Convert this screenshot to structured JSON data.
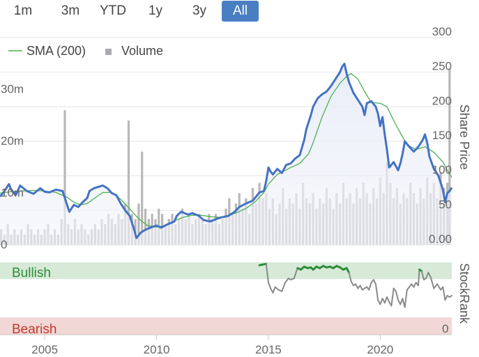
{
  "range_buttons": [
    {
      "label": "1m",
      "active": false
    },
    {
      "label": "3m",
      "active": false
    },
    {
      "label": "YTD",
      "active": false
    },
    {
      "label": "1y",
      "active": false
    },
    {
      "label": "3y",
      "active": false
    },
    {
      "label": "All",
      "active": true
    }
  ],
  "colors": {
    "price": "#4472c4",
    "sma": "#4caf50",
    "volume": "#b8b8b8",
    "bullish_bg": "#d6ead7",
    "bearish_bg": "#f2d7d7",
    "rank_bull": "#2e8b3a",
    "rank_gray": "#8a8a8a",
    "accent": "#4a7ec2"
  },
  "chart_data": {
    "type": "line",
    "legend": [
      {
        "name": "SMA (200)",
        "icon": "line"
      },
      {
        "name": "Volume",
        "icon": "square"
      }
    ],
    "price_axis": {
      "title": "Share Price",
      "ticks": [
        "300",
        "250",
        "200",
        "150",
        "100",
        "50",
        "0.00"
      ],
      "range": [
        0,
        300
      ]
    },
    "volume_axis": {
      "ticks": [
        "30m",
        "20m",
        "10m",
        "0"
      ],
      "range": [
        0,
        40
      ]
    },
    "stockrank_axis": {
      "title": "StockRank",
      "zero_label": "0",
      "range": [
        0,
        100
      ]
    },
    "zones": {
      "top": "Bullish",
      "bottom": "Bearish"
    },
    "x_axis": {
      "ticks": [
        "2005",
        "2010",
        "2015",
        "2020"
      ],
      "range": [
        2003.0,
        2023.2
      ]
    },
    "price_series": [
      [
        2003.0,
        70
      ],
      [
        2003.2,
        78
      ],
      [
        2003.4,
        88
      ],
      [
        2003.5,
        80
      ],
      [
        2003.7,
        72
      ],
      [
        2003.9,
        86
      ],
      [
        2004.2,
        78
      ],
      [
        2004.5,
        74
      ],
      [
        2004.8,
        82
      ],
      [
        2005.0,
        77
      ],
      [
        2005.2,
        76
      ],
      [
        2005.5,
        80
      ],
      [
        2005.8,
        78
      ],
      [
        2005.9,
        68
      ],
      [
        2006.0,
        58
      ],
      [
        2006.1,
        48
      ],
      [
        2006.3,
        58
      ],
      [
        2006.5,
        55
      ],
      [
        2006.7,
        62
      ],
      [
        2006.9,
        68
      ],
      [
        2007.0,
        78
      ],
      [
        2007.2,
        82
      ],
      [
        2007.4,
        84
      ],
      [
        2007.6,
        86
      ],
      [
        2007.8,
        82
      ],
      [
        2008.0,
        75
      ],
      [
        2008.2,
        72
      ],
      [
        2008.4,
        60
      ],
      [
        2008.6,
        50
      ],
      [
        2008.8,
        42
      ],
      [
        2009.0,
        22
      ],
      [
        2009.1,
        10
      ],
      [
        2009.3,
        18
      ],
      [
        2009.5,
        22
      ],
      [
        2009.8,
        26
      ],
      [
        2010.0,
        28
      ],
      [
        2010.2,
        25
      ],
      [
        2010.5,
        30
      ],
      [
        2010.8,
        34
      ],
      [
        2010.9,
        42
      ],
      [
        2011.1,
        48
      ],
      [
        2011.4,
        44
      ],
      [
        2011.6,
        46
      ],
      [
        2011.9,
        42
      ],
      [
        2012.1,
        36
      ],
      [
        2012.4,
        34
      ],
      [
        2012.7,
        38
      ],
      [
        2012.9,
        40
      ],
      [
        2013.2,
        42
      ],
      [
        2013.5,
        48
      ],
      [
        2013.7,
        55
      ],
      [
        2014.0,
        60
      ],
      [
        2014.3,
        64
      ],
      [
        2014.6,
        76
      ],
      [
        2014.8,
        78
      ],
      [
        2014.9,
        92
      ],
      [
        2015.0,
        112
      ],
      [
        2015.1,
        106
      ],
      [
        2015.2,
        102
      ],
      [
        2015.4,
        110
      ],
      [
        2015.6,
        104
      ],
      [
        2015.8,
        116
      ],
      [
        2016.0,
        118
      ],
      [
        2016.2,
        125
      ],
      [
        2016.4,
        130
      ],
      [
        2016.6,
        152
      ],
      [
        2016.7,
        168
      ],
      [
        2016.9,
        188
      ],
      [
        2017.0,
        200
      ],
      [
        2017.2,
        212
      ],
      [
        2017.4,
        218
      ],
      [
        2017.6,
        222
      ],
      [
        2017.8,
        230
      ],
      [
        2018.0,
        240
      ],
      [
        2018.2,
        250
      ],
      [
        2018.3,
        258
      ],
      [
        2018.4,
        262
      ],
      [
        2018.5,
        248
      ],
      [
        2018.6,
        236
      ],
      [
        2018.8,
        220
      ],
      [
        2019.0,
        210
      ],
      [
        2019.2,
        200
      ],
      [
        2019.3,
        188
      ],
      [
        2019.4,
        205
      ],
      [
        2019.6,
        208
      ],
      [
        2019.8,
        200
      ],
      [
        2019.9,
        190
      ],
      [
        2020.0,
        172
      ],
      [
        2020.1,
        185
      ],
      [
        2020.2,
        160
      ],
      [
        2020.3,
        138
      ],
      [
        2020.4,
        112
      ],
      [
        2020.6,
        120
      ],
      [
        2020.8,
        108
      ],
      [
        2020.9,
        118
      ],
      [
        2021.0,
        132
      ],
      [
        2021.1,
        150
      ],
      [
        2021.3,
        142
      ],
      [
        2021.5,
        135
      ],
      [
        2021.7,
        142
      ],
      [
        2021.9,
        152
      ],
      [
        2022.0,
        160
      ],
      [
        2022.1,
        148
      ],
      [
        2022.2,
        128
      ],
      [
        2022.4,
        110
      ],
      [
        2022.6,
        100
      ],
      [
        2022.8,
        80
      ],
      [
        2022.9,
        62
      ],
      [
        2023.0,
        75
      ],
      [
        2023.1,
        78
      ],
      [
        2023.2,
        83
      ]
    ],
    "sma_series": [
      [
        2003.0,
        75
      ],
      [
        2003.5,
        77
      ],
      [
        2004.0,
        78
      ],
      [
        2004.5,
        79
      ],
      [
        2005.0,
        78
      ],
      [
        2005.5,
        76
      ],
      [
        2006.0,
        69
      ],
      [
        2006.3,
        62
      ],
      [
        2006.6,
        58
      ],
      [
        2006.9,
        60
      ],
      [
        2007.2,
        67
      ],
      [
        2007.6,
        76
      ],
      [
        2008.0,
        76
      ],
      [
        2008.4,
        66
      ],
      [
        2008.8,
        52
      ],
      [
        2009.2,
        38
      ],
      [
        2009.6,
        28
      ],
      [
        2010.0,
        26
      ],
      [
        2010.4,
        28
      ],
      [
        2010.8,
        35
      ],
      [
        2011.2,
        40
      ],
      [
        2011.6,
        43
      ],
      [
        2012.0,
        43
      ],
      [
        2012.4,
        41
      ],
      [
        2012.8,
        40
      ],
      [
        2013.2,
        42
      ],
      [
        2013.6,
        47
      ],
      [
        2014.0,
        53
      ],
      [
        2014.4,
        62
      ],
      [
        2014.8,
        76
      ],
      [
        2015.0,
        88
      ],
      [
        2015.4,
        102
      ],
      [
        2016.0,
        112
      ],
      [
        2016.4,
        118
      ],
      [
        2016.8,
        132
      ],
      [
        2017.0,
        148
      ],
      [
        2017.4,
        185
      ],
      [
        2017.8,
        215
      ],
      [
        2018.2,
        234
      ],
      [
        2018.5,
        244
      ],
      [
        2018.7,
        248
      ],
      [
        2019.0,
        240
      ],
      [
        2019.3,
        222
      ],
      [
        2019.6,
        206
      ],
      [
        2020.0,
        205
      ],
      [
        2020.3,
        200
      ],
      [
        2020.6,
        180
      ],
      [
        2020.9,
        162
      ],
      [
        2021.2,
        145
      ],
      [
        2021.6,
        138
      ],
      [
        2022.0,
        142
      ],
      [
        2022.4,
        134
      ],
      [
        2022.8,
        120
      ],
      [
        2023.0,
        108
      ],
      [
        2023.2,
        98
      ]
    ],
    "volume_series": [
      [
        2003.05,
        3
      ],
      [
        2003.2,
        2
      ],
      [
        2003.35,
        4
      ],
      [
        2003.5,
        2
      ],
      [
        2003.65,
        3
      ],
      [
        2003.8,
        2
      ],
      [
        2003.95,
        3
      ],
      [
        2004.1,
        2
      ],
      [
        2004.25,
        4
      ],
      [
        2004.4,
        3
      ],
      [
        2004.55,
        2
      ],
      [
        2004.7,
        3
      ],
      [
        2004.85,
        2
      ],
      [
        2005.0,
        3
      ],
      [
        2005.15,
        4
      ],
      [
        2005.3,
        2
      ],
      [
        2005.45,
        3
      ],
      [
        2005.6,
        2
      ],
      [
        2005.75,
        5
      ],
      [
        2005.9,
        26
      ],
      [
        2006.05,
        4
      ],
      [
        2006.2,
        3
      ],
      [
        2006.35,
        5
      ],
      [
        2006.5,
        3
      ],
      [
        2006.65,
        4
      ],
      [
        2006.8,
        3
      ],
      [
        2006.95,
        2
      ],
      [
        2007.1,
        3
      ],
      [
        2007.25,
        4
      ],
      [
        2007.4,
        3
      ],
      [
        2007.55,
        5
      ],
      [
        2007.7,
        4
      ],
      [
        2007.85,
        6
      ],
      [
        2008.0,
        5
      ],
      [
        2008.15,
        4
      ],
      [
        2008.3,
        6
      ],
      [
        2008.45,
        5
      ],
      [
        2008.6,
        8
      ],
      [
        2008.75,
        24
      ],
      [
        2008.9,
        6
      ],
      [
        2009.05,
        5
      ],
      [
        2009.2,
        8
      ],
      [
        2009.35,
        18
      ],
      [
        2009.5,
        7
      ],
      [
        2009.65,
        5
      ],
      [
        2009.8,
        6
      ],
      [
        2009.95,
        5
      ],
      [
        2010.1,
        7
      ],
      [
        2010.25,
        6
      ],
      [
        2010.4,
        4
      ],
      [
        2010.55,
        5
      ],
      [
        2010.7,
        6
      ],
      [
        2010.85,
        4
      ],
      [
        2011.0,
        5
      ],
      [
        2011.15,
        7
      ],
      [
        2011.3,
        5
      ],
      [
        2011.45,
        6
      ],
      [
        2011.6,
        4
      ],
      [
        2011.75,
        5
      ],
      [
        2011.9,
        6
      ],
      [
        2012.05,
        5
      ],
      [
        2012.2,
        4
      ],
      [
        2012.35,
        6
      ],
      [
        2012.5,
        5
      ],
      [
        2012.65,
        6
      ],
      [
        2012.8,
        4
      ],
      [
        2012.95,
        5
      ],
      [
        2013.1,
        7
      ],
      [
        2013.25,
        9
      ],
      [
        2013.4,
        6
      ],
      [
        2013.55,
        8
      ],
      [
        2013.7,
        10
      ],
      [
        2013.85,
        7
      ],
      [
        2014.0,
        9
      ],
      [
        2014.15,
        6
      ],
      [
        2014.3,
        11
      ],
      [
        2014.45,
        8
      ],
      [
        2014.6,
        12
      ],
      [
        2014.75,
        9
      ],
      [
        2014.9,
        10
      ],
      [
        2015.05,
        7
      ],
      [
        2015.2,
        9
      ],
      [
        2015.35,
        6
      ],
      [
        2015.5,
        8
      ],
      [
        2015.65,
        11
      ],
      [
        2015.8,
        7
      ],
      [
        2015.95,
        9
      ],
      [
        2016.1,
        8
      ],
      [
        2016.25,
        10
      ],
      [
        2016.4,
        7
      ],
      [
        2016.55,
        12
      ],
      [
        2016.7,
        9
      ],
      [
        2016.85,
        8
      ],
      [
        2017.0,
        10
      ],
      [
        2017.15,
        7
      ],
      [
        2017.3,
        9
      ],
      [
        2017.45,
        8
      ],
      [
        2017.6,
        11
      ],
      [
        2017.75,
        9
      ],
      [
        2017.9,
        7
      ],
      [
        2018.05,
        10
      ],
      [
        2018.2,
        8
      ],
      [
        2018.35,
        12
      ],
      [
        2018.5,
        9
      ],
      [
        2018.65,
        10
      ],
      [
        2018.8,
        8
      ],
      [
        2018.95,
        11
      ],
      [
        2019.1,
        9
      ],
      [
        2019.25,
        12
      ],
      [
        2019.4,
        10
      ],
      [
        2019.55,
        8
      ],
      [
        2019.7,
        11
      ],
      [
        2019.85,
        9
      ],
      [
        2020.0,
        13
      ],
      [
        2020.15,
        10
      ],
      [
        2020.3,
        16
      ],
      [
        2020.45,
        12
      ],
      [
        2020.6,
        9
      ],
      [
        2020.75,
        11
      ],
      [
        2020.9,
        8
      ],
      [
        2021.05,
        10
      ],
      [
        2021.2,
        9
      ],
      [
        2021.35,
        12
      ],
      [
        2021.5,
        10
      ],
      [
        2021.65,
        8
      ],
      [
        2021.8,
        11
      ],
      [
        2021.95,
        9
      ],
      [
        2022.1,
        13
      ],
      [
        2022.25,
        10
      ],
      [
        2022.4,
        12
      ],
      [
        2022.55,
        9
      ],
      [
        2022.7,
        14
      ],
      [
        2022.85,
        11
      ],
      [
        2023.0,
        12
      ],
      [
        2023.1,
        34
      ]
    ],
    "stockrank_series": [
      [
        2014.6,
        96
      ],
      [
        2014.9,
        98
      ],
      [
        2015.0,
        72
      ],
      [
        2015.1,
        64
      ],
      [
        2015.2,
        58
      ],
      [
        2015.3,
        66
      ],
      [
        2015.45,
        62
      ],
      [
        2015.6,
        60
      ],
      [
        2015.75,
        72
      ],
      [
        2015.9,
        78
      ],
      [
        2016.0,
        76
      ],
      [
        2016.15,
        78
      ],
      [
        2016.3,
        92
      ],
      [
        2016.45,
        90
      ],
      [
        2016.6,
        94
      ],
      [
        2016.75,
        92
      ],
      [
        2016.9,
        93
      ],
      [
        2017.0,
        90
      ],
      [
        2017.15,
        94
      ],
      [
        2017.3,
        92
      ],
      [
        2017.45,
        95
      ],
      [
        2017.6,
        93
      ],
      [
        2017.75,
        94
      ],
      [
        2017.9,
        92
      ],
      [
        2018.05,
        95
      ],
      [
        2018.2,
        93
      ],
      [
        2018.35,
        90
      ],
      [
        2018.5,
        92
      ],
      [
        2018.6,
        86
      ],
      [
        2018.7,
        74
      ],
      [
        2018.8,
        68
      ],
      [
        2018.9,
        70
      ],
      [
        2019.0,
        64
      ],
      [
        2019.1,
        68
      ],
      [
        2019.2,
        62
      ],
      [
        2019.3,
        64
      ],
      [
        2019.4,
        66
      ],
      [
        2019.5,
        62
      ],
      [
        2019.6,
        72
      ],
      [
        2019.7,
        76
      ],
      [
        2019.8,
        70
      ],
      [
        2019.9,
        48
      ],
      [
        2020.0,
        42
      ],
      [
        2020.1,
        50
      ],
      [
        2020.2,
        44
      ],
      [
        2020.3,
        52
      ],
      [
        2020.4,
        45
      ],
      [
        2020.5,
        40
      ],
      [
        2020.6,
        64
      ],
      [
        2020.7,
        60
      ],
      [
        2020.8,
        48
      ],
      [
        2020.9,
        42
      ],
      [
        2021.0,
        50
      ],
      [
        2021.1,
        38
      ],
      [
        2021.2,
        62
      ],
      [
        2021.3,
        66
      ],
      [
        2021.4,
        70
      ],
      [
        2021.5,
        66
      ],
      [
        2021.6,
        72
      ],
      [
        2021.7,
        68
      ],
      [
        2021.75,
        90
      ],
      [
        2021.85,
        88
      ],
      [
        2021.95,
        76
      ],
      [
        2022.05,
        78
      ],
      [
        2022.15,
        86
      ],
      [
        2022.25,
        80
      ],
      [
        2022.4,
        64
      ],
      [
        2022.55,
        70
      ],
      [
        2022.7,
        62
      ],
      [
        2022.8,
        66
      ],
      [
        2022.9,
        48
      ],
      [
        2023.0,
        54
      ],
      [
        2023.1,
        52
      ],
      [
        2023.2,
        54
      ]
    ]
  }
}
